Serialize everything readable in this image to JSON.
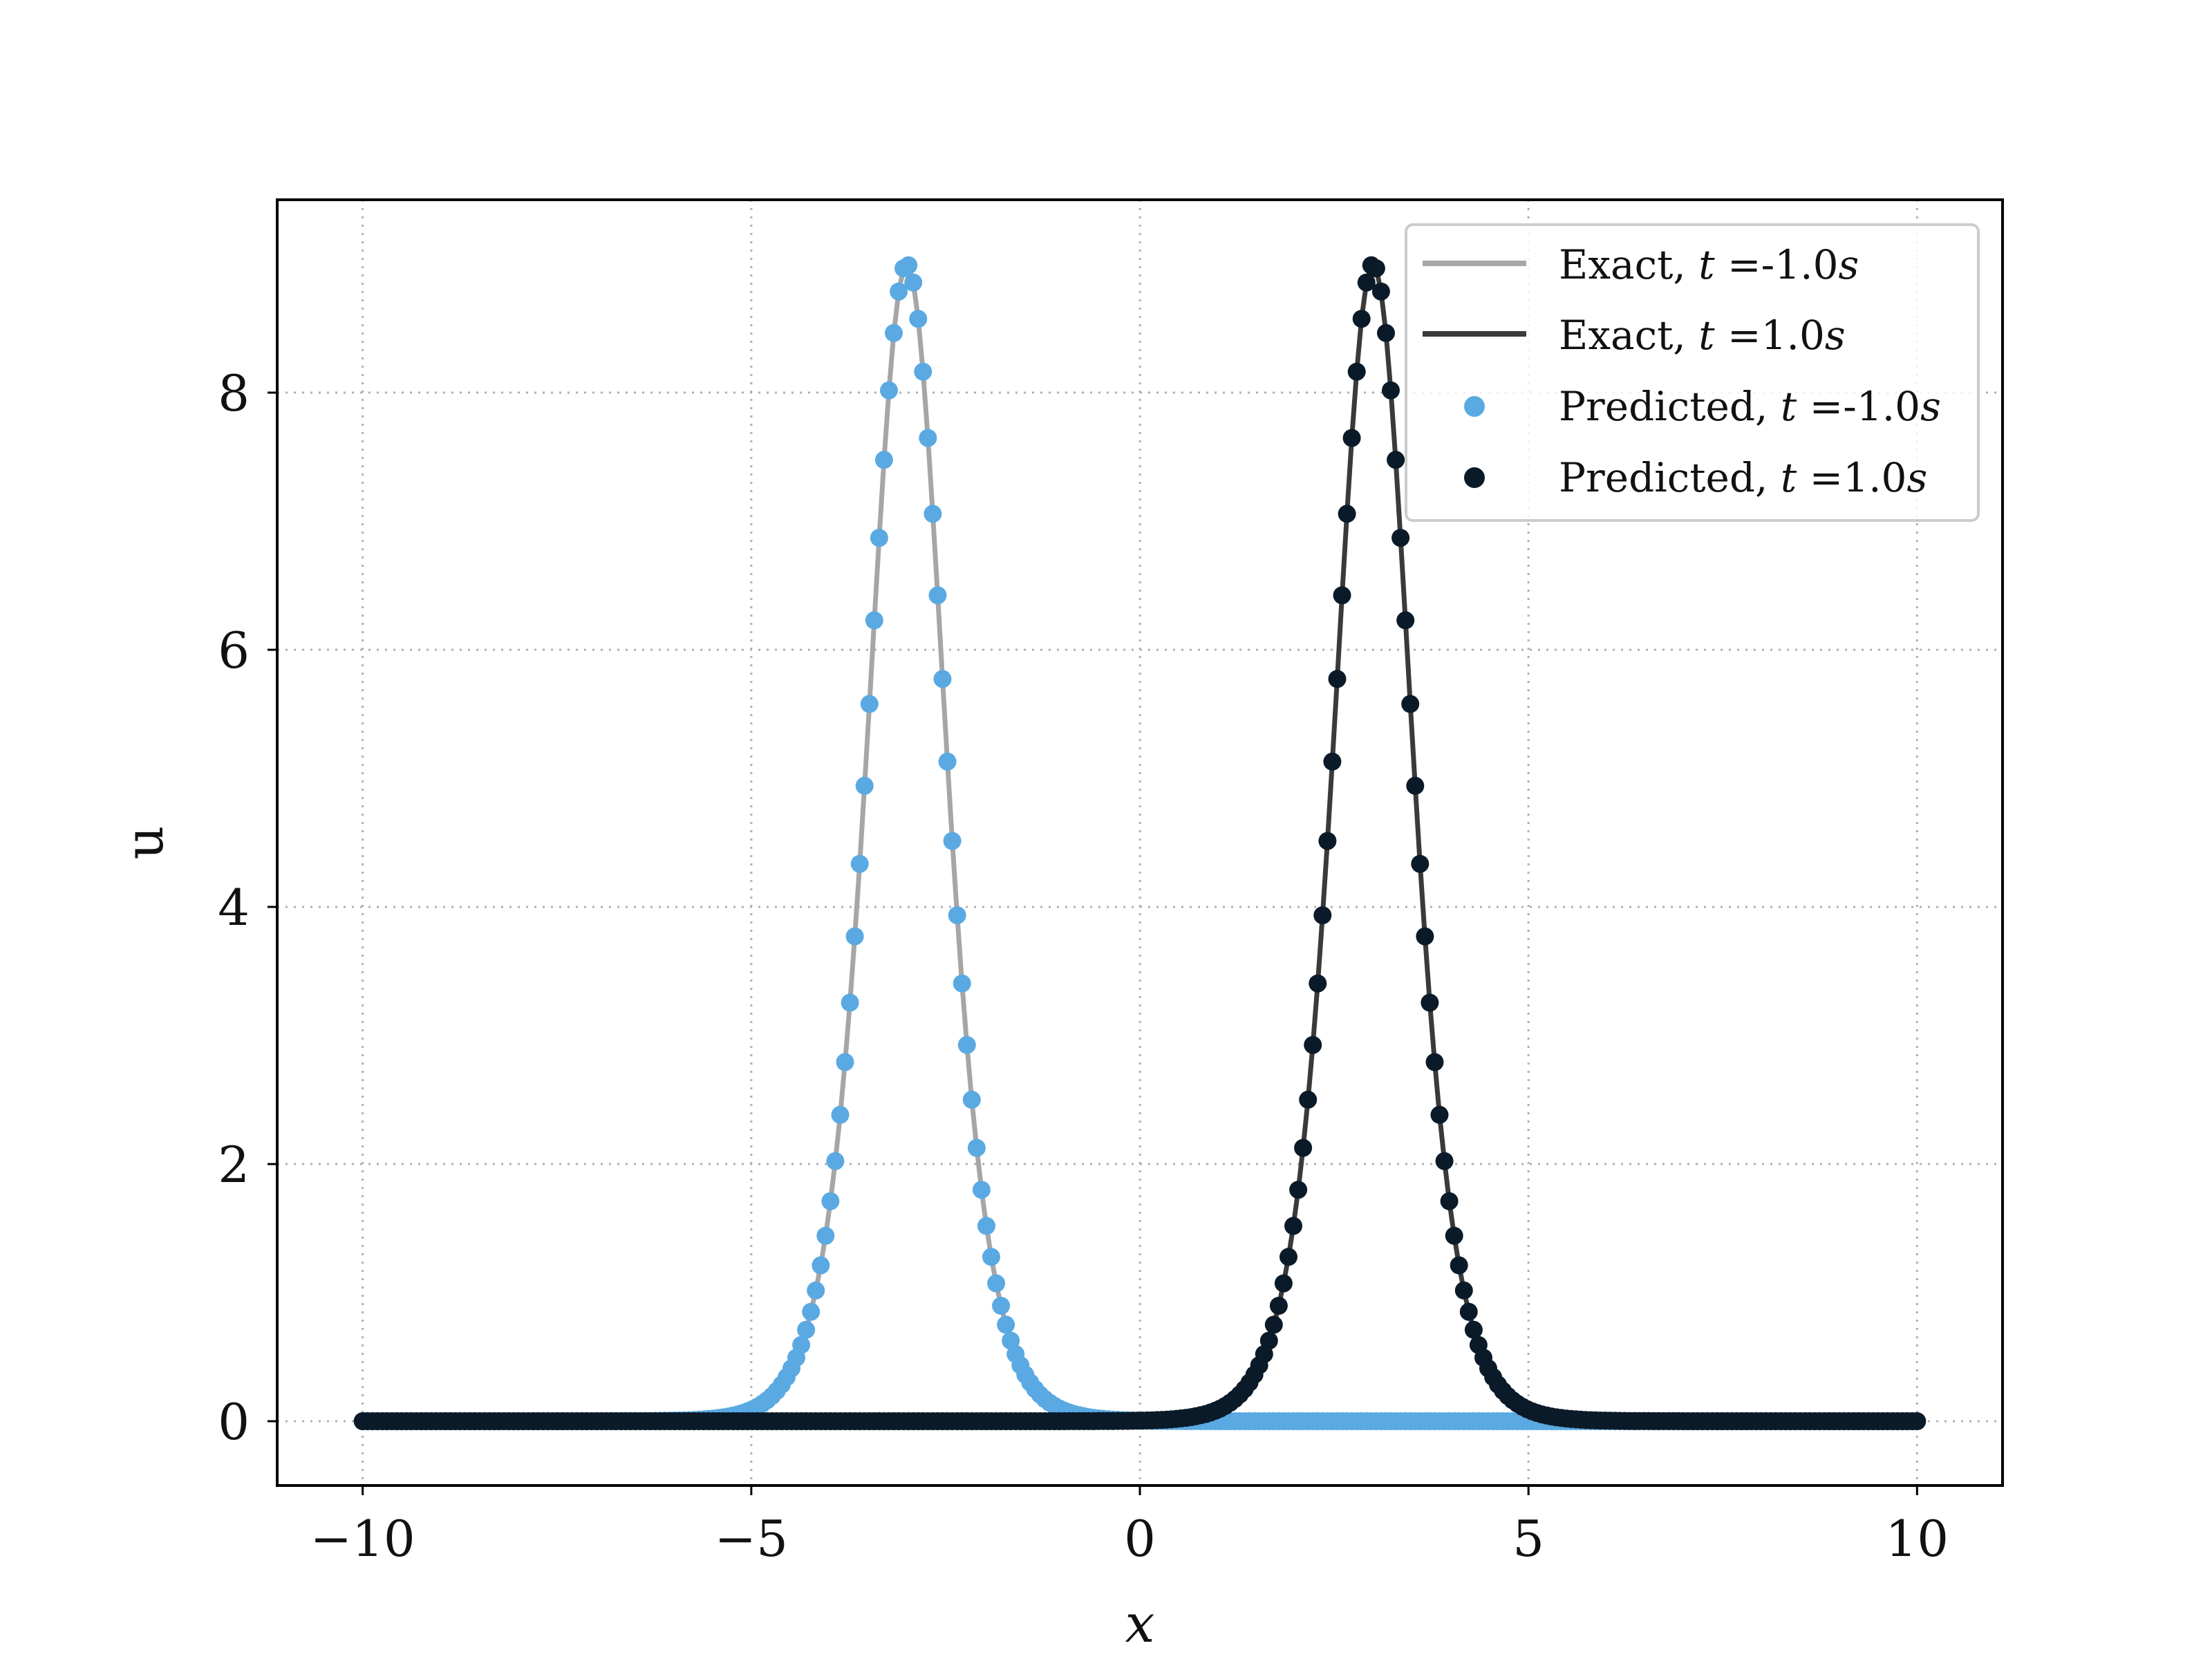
{
  "chart_data": {
    "type": "scatter",
    "title": "",
    "xlabel": "x",
    "ylabel": "u",
    "xlim": [
      -11.1,
      11.1
    ],
    "ylim": [
      -0.5,
      9.5
    ],
    "xticks": [
      -10,
      -5,
      0,
      5,
      10
    ],
    "xtick_labels": [
      "−10",
      "−5",
      "0",
      "5",
      "10"
    ],
    "yticks": [
      0,
      2,
      4,
      6,
      8
    ],
    "ytick_labels": [
      "0",
      "2",
      "4",
      "6",
      "8"
    ],
    "grid": true,
    "grid_style": "dotted",
    "legend_position": "top-right",
    "curve": {
      "formula": "u = 9 * sech^2(1.5 * (x - c))",
      "amplitude": 9,
      "width_factor": 1.5,
      "x_range": [
        -10,
        10
      ],
      "samples": 320
    },
    "series": [
      {
        "name": "Exact, t =-1.0s",
        "legend_prefix": "Exact, ",
        "legend_var": "t",
        "legend_mid": " =-1.0",
        "legend_unit": "s",
        "kind": "line",
        "center": -3,
        "color": "#a6a6a6"
      },
      {
        "name": "Exact, t =1.0s",
        "legend_prefix": "Exact, ",
        "legend_var": "t",
        "legend_mid": " =1.0",
        "legend_unit": "s",
        "kind": "line",
        "center": 3,
        "color": "#3a3a3a"
      },
      {
        "name": "Predicted, t =-1.0s",
        "legend_prefix": "Predicted, ",
        "legend_var": "t",
        "legend_mid": " =-1.0",
        "legend_unit": "s",
        "kind": "scatter",
        "center": -3,
        "color": "#5aa9e2"
      },
      {
        "name": "Predicted, t =1.0s",
        "legend_prefix": "Predicted, ",
        "legend_var": "t",
        "legend_mid": " =1.0",
        "legend_unit": "s",
        "kind": "scatter",
        "center": 3,
        "color": "#0a1a28"
      }
    ]
  }
}
